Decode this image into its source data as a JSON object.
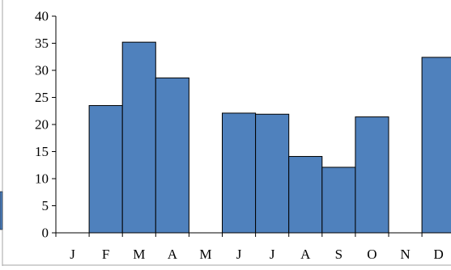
{
  "chart_data": {
    "type": "bar",
    "categories": [
      "J",
      "F",
      "M",
      "A",
      "M",
      "J",
      "J",
      "A",
      "S",
      "O",
      "N",
      "D"
    ],
    "values": [
      0,
      23.5,
      35.2,
      28.6,
      0,
      22.1,
      21.9,
      14.1,
      12.1,
      21.4,
      0,
      32.4
    ],
    "ylim": [
      0,
      40
    ],
    "yticks": [
      0,
      5,
      10,
      15,
      20,
      25,
      30,
      35,
      40
    ],
    "grid": false,
    "bar_color": "#4f81bd",
    "bar_stroke": "#000000",
    "legend_swatch_color": "#4f81bd"
  }
}
